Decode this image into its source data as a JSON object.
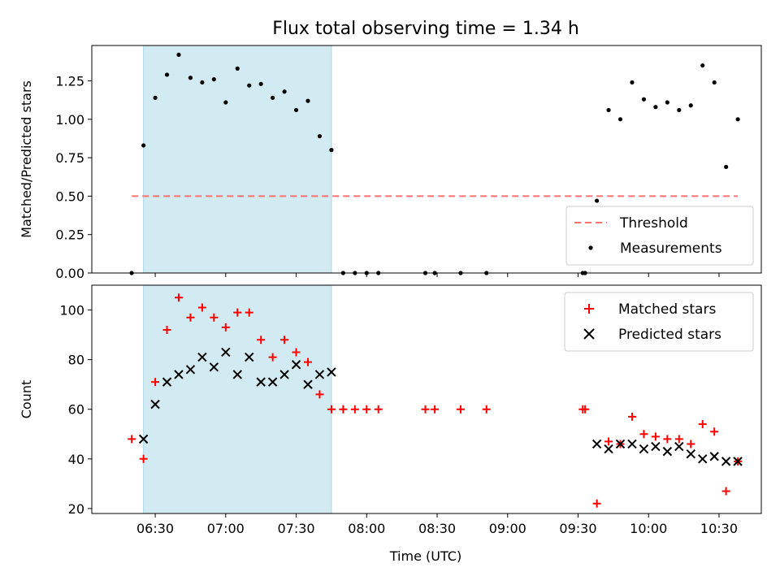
{
  "chart_data": {
    "title": "Flux total observing time = 1.34 h",
    "xlabel": "Time (UTC)",
    "x_unit": "minutes since 00:00 UTC",
    "xlim": [
      "06:03",
      "10:48"
    ],
    "x_ticks": [
      "06:30",
      "07:00",
      "07:30",
      "08:00",
      "08:30",
      "09:00",
      "09:30",
      "10:00",
      "10:30"
    ],
    "shaded_region": {
      "x": [
        "06:25",
        "07:45"
      ],
      "color": "#add8e6"
    },
    "panels": [
      {
        "type": "scatter",
        "ylabel": "Matched/Predicted stars",
        "ylim": [
          0,
          1.48
        ],
        "y_ticks": [
          "0.00",
          "0.25",
          "0.50",
          "0.75",
          "1.00",
          "1.25"
        ],
        "legend": "lower-right",
        "threshold": {
          "name": "Threshold",
          "y": 0.5,
          "x": [
            "06:20",
            "10:38"
          ],
          "color": "#ff7070",
          "style": "dashed"
        },
        "series": [
          {
            "name": "Measurements",
            "color": "#000000",
            "marker": "dot",
            "x": [
              "06:20",
              "06:25",
              "06:30",
              "06:35",
              "06:40",
              "06:45",
              "06:50",
              "06:55",
              "07:00",
              "07:05",
              "07:10",
              "07:15",
              "07:20",
              "07:25",
              "07:30",
              "07:35",
              "07:40",
              "07:45",
              "07:50",
              "07:55",
              "08:00",
              "08:05",
              "08:25",
              "08:29",
              "08:40",
              "08:51",
              "09:32",
              "09:33",
              "09:38",
              "09:43",
              "09:48",
              "09:53",
              "09:58",
              "10:03",
              "10:08",
              "10:13",
              "10:18",
              "10:23",
              "10:28",
              "10:33",
              "10:38"
            ],
            "y": [
              0.0,
              0.83,
              1.14,
              1.29,
              1.42,
              1.27,
              1.24,
              1.26,
              1.11,
              1.33,
              1.22,
              1.23,
              1.14,
              1.18,
              1.06,
              1.12,
              0.89,
              0.8,
              0.0,
              0.0,
              0.0,
              0.0,
              0.0,
              0.0,
              0.0,
              0.0,
              0.0,
              0.0,
              0.47,
              1.06,
              1.0,
              1.24,
              1.13,
              1.08,
              1.11,
              1.06,
              1.09,
              1.35,
              1.24,
              0.69,
              1.0
            ]
          }
        ]
      },
      {
        "type": "scatter",
        "ylabel": "Count",
        "ylim": [
          18,
          110
        ],
        "y_ticks": [
          "20",
          "40",
          "60",
          "80",
          "100"
        ],
        "legend": "top-right",
        "series": [
          {
            "name": "Matched stars",
            "color": "#ff0000",
            "marker": "plus",
            "x": [
              "06:20",
              "06:25",
              "06:30",
              "06:35",
              "06:40",
              "06:45",
              "06:50",
              "06:55",
              "07:00",
              "07:05",
              "07:10",
              "07:15",
              "07:20",
              "07:25",
              "07:30",
              "07:35",
              "07:40",
              "07:45",
              "07:50",
              "07:55",
              "08:00",
              "08:05",
              "08:25",
              "08:29",
              "08:40",
              "08:51",
              "09:32",
              "09:33",
              "09:38",
              "09:43",
              "09:48",
              "09:53",
              "09:58",
              "10:03",
              "10:08",
              "10:13",
              "10:18",
              "10:23",
              "10:28",
              "10:33",
              "10:38"
            ],
            "y": [
              48,
              40,
              71,
              92,
              105,
              97,
              101,
              97,
              93,
              99,
              99,
              88,
              81,
              88,
              83,
              79,
              66,
              60,
              60,
              60,
              60,
              60,
              60,
              60,
              60,
              60,
              60,
              60,
              22,
              47,
              46,
              57,
              50,
              49,
              48,
              48,
              46,
              54,
              51,
              27,
              39
            ]
          },
          {
            "name": "Predicted stars",
            "color": "#000000",
            "marker": "x",
            "x": [
              "06:25",
              "06:30",
              "06:35",
              "06:40",
              "06:45",
              "06:50",
              "06:55",
              "07:00",
              "07:05",
              "07:10",
              "07:15",
              "07:20",
              "07:25",
              "07:30",
              "07:35",
              "07:40",
              "07:45",
              "09:38",
              "09:43",
              "09:48",
              "09:53",
              "09:58",
              "10:03",
              "10:08",
              "10:13",
              "10:18",
              "10:23",
              "10:28",
              "10:33",
              "10:38"
            ],
            "y": [
              48,
              62,
              71,
              74,
              76,
              81,
              77,
              83,
              74,
              81,
              71,
              71,
              74,
              78,
              70,
              74,
              75,
              46,
              44,
              46,
              46,
              44,
              45,
              43,
              45,
              42,
              40,
              41,
              39,
              39
            ]
          }
        ]
      }
    ]
  }
}
